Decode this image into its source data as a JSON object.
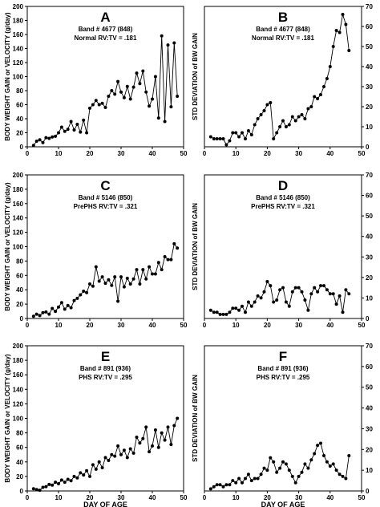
{
  "chart_data": [
    {
      "panel": "A",
      "type": "line",
      "letter": "A",
      "annotations": [
        "Band # 4677 (848)",
        "Normal RV:TV = .181"
      ],
      "ylabel": "BODY WEIGHT GAIN or VELOCITY (g/day)",
      "xlabel": "",
      "y_axis_side": "left",
      "xlim": [
        0,
        50
      ],
      "ylim": [
        0,
        200
      ],
      "xticks": [
        0,
        10,
        20,
        30,
        40,
        50
      ],
      "yticks": [
        0,
        20,
        40,
        60,
        80,
        100,
        120,
        140,
        160,
        180,
        200
      ],
      "x": [
        2,
        3,
        4,
        5,
        6,
        7,
        8,
        9,
        10,
        11,
        12,
        13,
        14,
        15,
        16,
        17,
        18,
        19,
        20,
        21,
        22,
        23,
        24,
        25,
        26,
        27,
        28,
        29,
        30,
        31,
        32,
        33,
        34,
        35,
        36,
        37,
        38,
        39,
        40,
        41,
        42,
        43,
        44,
        45,
        46,
        47,
        48
      ],
      "y": [
        2,
        8,
        10,
        6,
        13,
        12,
        14,
        15,
        20,
        28,
        22,
        25,
        36,
        24,
        32,
        21,
        38,
        20,
        55,
        60,
        66,
        60,
        62,
        56,
        72,
        80,
        75,
        93,
        78,
        70,
        86,
        68,
        85,
        105,
        90,
        108,
        78,
        58,
        68,
        100,
        41,
        158,
        36,
        145,
        57,
        148,
        72
      ]
    },
    {
      "panel": "B",
      "type": "line",
      "letter": "B",
      "annotations": [
        "Band # 4677 (848)",
        "Normal RV:TV = .181"
      ],
      "ylabel": "STD DEVIATION of BW GAIN",
      "xlabel": "",
      "y_axis_side": "right",
      "xlim": [
        0,
        50
      ],
      "ylim": [
        0,
        70
      ],
      "xticks": [
        0,
        10,
        20,
        30,
        40,
        50
      ],
      "yticks": [
        0,
        10,
        20,
        30,
        40,
        50,
        60,
        70
      ],
      "x": [
        2,
        3,
        4,
        5,
        6,
        7,
        8,
        9,
        10,
        11,
        12,
        13,
        14,
        15,
        16,
        17,
        18,
        19,
        20,
        21,
        22,
        23,
        24,
        25,
        26,
        27,
        28,
        29,
        30,
        31,
        32,
        33,
        34,
        35,
        36,
        37,
        38,
        39,
        40,
        41,
        42,
        43,
        44,
        45,
        46
      ],
      "y": [
        5,
        4,
        4,
        4,
        4,
        1,
        3,
        7,
        7,
        5,
        7,
        4,
        8,
        6,
        11,
        14,
        16,
        18,
        21,
        22,
        4,
        7,
        10,
        13,
        10,
        11,
        15,
        13,
        15,
        16,
        14,
        19,
        20,
        25,
        24,
        26,
        30,
        34,
        40,
        50,
        58,
        57,
        66,
        61,
        48
      ]
    },
    {
      "panel": "C",
      "type": "line",
      "letter": "C",
      "annotations": [
        "Band # 5146 (850)",
        "PrePHS RV:TV = .321"
      ],
      "ylabel": "BODY WEIGHT GAIN or VELOCITY (g/day)",
      "xlabel": "",
      "y_axis_side": "left",
      "xlim": [
        0,
        50
      ],
      "ylim": [
        0,
        200
      ],
      "xticks": [
        0,
        10,
        20,
        30,
        40,
        50
      ],
      "yticks": [
        0,
        20,
        40,
        60,
        80,
        100,
        120,
        140,
        160,
        180,
        200
      ],
      "x": [
        2,
        3,
        4,
        5,
        6,
        7,
        8,
        9,
        10,
        11,
        12,
        13,
        14,
        15,
        16,
        17,
        18,
        19,
        20,
        21,
        22,
        23,
        24,
        25,
        26,
        27,
        28,
        29,
        30,
        31,
        32,
        33,
        34,
        35,
        36,
        37,
        38,
        39,
        40,
        41,
        42,
        43,
        44,
        45,
        46,
        47,
        48
      ],
      "y": [
        3,
        6,
        4,
        8,
        9,
        6,
        14,
        10,
        16,
        22,
        13,
        18,
        15,
        25,
        28,
        33,
        38,
        36,
        48,
        45,
        72,
        52,
        58,
        49,
        54,
        46,
        58,
        24,
        58,
        44,
        56,
        48,
        55,
        68,
        48,
        68,
        55,
        72,
        62,
        62,
        78,
        68,
        86,
        82,
        82,
        104,
        98
      ]
    },
    {
      "panel": "D",
      "type": "line",
      "letter": "D",
      "annotations": [
        "Band # 5146 (850)",
        "PrePHS RV:TV = .321"
      ],
      "ylabel": "STD DEVIATION of BW GAIN",
      "xlabel": "",
      "y_axis_side": "right",
      "xlim": [
        0,
        50
      ],
      "ylim": [
        0,
        70
      ],
      "xticks": [
        0,
        10,
        20,
        30,
        40,
        50
      ],
      "yticks": [
        0,
        10,
        20,
        30,
        40,
        50,
        60,
        70
      ],
      "x": [
        2,
        3,
        4,
        5,
        6,
        7,
        8,
        9,
        10,
        11,
        12,
        13,
        14,
        15,
        16,
        17,
        18,
        19,
        20,
        21,
        22,
        23,
        24,
        25,
        26,
        27,
        28,
        29,
        30,
        31,
        32,
        33,
        34,
        35,
        36,
        37,
        38,
        39,
        40,
        41,
        42,
        43,
        44,
        45,
        46
      ],
      "y": [
        4,
        3,
        3,
        2,
        2,
        2,
        3,
        5,
        5,
        4,
        6,
        3,
        8,
        6,
        8,
        11,
        10,
        13,
        18,
        16,
        8,
        9,
        14,
        15,
        8,
        6,
        13,
        15,
        15,
        13,
        9,
        4,
        12,
        15,
        13,
        16,
        16,
        14,
        12,
        12,
        7,
        11,
        3,
        14,
        12
      ]
    },
    {
      "panel": "E",
      "type": "line",
      "letter": "E",
      "annotations": [
        "Band # 891 (936)",
        "PHS RV:TV = .295"
      ],
      "ylabel": "BODY WEIGHT GAIN or VELOCITY (g/day)",
      "xlabel": "DAY OF AGE",
      "y_axis_side": "left",
      "xlim": [
        0,
        50
      ],
      "ylim": [
        0,
        200
      ],
      "xticks": [
        0,
        10,
        20,
        30,
        40,
        50
      ],
      "yticks": [
        0,
        20,
        40,
        60,
        80,
        100,
        120,
        140,
        160,
        180,
        200
      ],
      "x": [
        2,
        3,
        4,
        5,
        6,
        7,
        8,
        9,
        10,
        11,
        12,
        13,
        14,
        15,
        16,
        17,
        18,
        19,
        20,
        21,
        22,
        23,
        24,
        25,
        26,
        27,
        28,
        29,
        30,
        31,
        32,
        33,
        34,
        35,
        36,
        37,
        38,
        39,
        40,
        41,
        42,
        43,
        44,
        45,
        46,
        47,
        48
      ],
      "y": [
        3,
        2,
        1,
        5,
        6,
        9,
        8,
        12,
        10,
        15,
        12,
        16,
        14,
        20,
        18,
        25,
        22,
        28,
        20,
        36,
        30,
        40,
        32,
        46,
        42,
        50,
        48,
        62,
        50,
        56,
        46,
        58,
        52,
        74,
        66,
        72,
        88,
        54,
        62,
        84,
        60,
        80,
        70,
        88,
        64,
        90,
        100
      ]
    },
    {
      "panel": "F",
      "type": "line",
      "letter": "F",
      "annotations": [
        "Band # 891 (936)",
        "PHS RV:TV = .295"
      ],
      "ylabel": "STD DEVIATION of BW GAIN",
      "xlabel": "DAY OF AGE",
      "y_axis_side": "right",
      "xlim": [
        0,
        50
      ],
      "ylim": [
        0,
        70
      ],
      "xticks": [
        0,
        10,
        20,
        30,
        40,
        50
      ],
      "yticks": [
        0,
        10,
        20,
        30,
        40,
        50,
        60,
        70
      ],
      "x": [
        2,
        3,
        4,
        5,
        6,
        7,
        8,
        9,
        10,
        11,
        12,
        13,
        14,
        15,
        16,
        17,
        18,
        19,
        20,
        21,
        22,
        23,
        24,
        25,
        26,
        27,
        28,
        29,
        30,
        31,
        32,
        33,
        34,
        35,
        36,
        37,
        38,
        39,
        40,
        41,
        42,
        43,
        44,
        45,
        46
      ],
      "y": [
        1,
        2,
        3,
        3,
        2,
        3,
        3,
        5,
        4,
        6,
        4,
        6,
        8,
        5,
        6,
        6,
        8,
        11,
        10,
        16,
        14,
        9,
        11,
        14,
        13,
        10,
        7,
        4,
        7,
        9,
        13,
        11,
        15,
        18,
        22,
        23,
        17,
        14,
        12,
        13,
        10,
        8,
        7,
        6,
        17
      ]
    }
  ]
}
